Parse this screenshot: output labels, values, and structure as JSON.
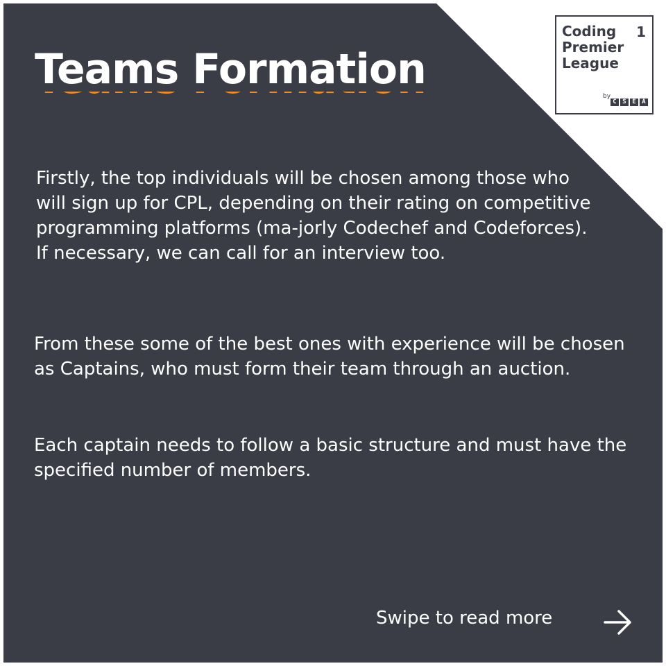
{
  "title": "Teams Formation",
  "paragraphs": [
    "Firstly, the top individuals will be chosen among those who will sign up for CPL, depending on their rating on competitive programming platforms (ma-jorly Codechef and Codeforces). If necessary, we can call for an interview too.",
    "From these some of the best ones with experience will be chosen as Captains, who must form their team through an auction.",
    "Each captain needs to follow a basic structure and must have the specified number of members."
  ],
  "swipe_text": "Swipe to read more",
  "logo": {
    "line1": "Coding",
    "line2": "Premier",
    "line3": "League",
    "number": "1",
    "by": "by",
    "org_letters": [
      "C",
      "S",
      "E",
      "A"
    ]
  },
  "icons": {
    "next": "arrow-right-icon"
  },
  "colors": {
    "panel": "#3a3d45",
    "accent": "#e98d2f",
    "text": "#ffffff"
  }
}
